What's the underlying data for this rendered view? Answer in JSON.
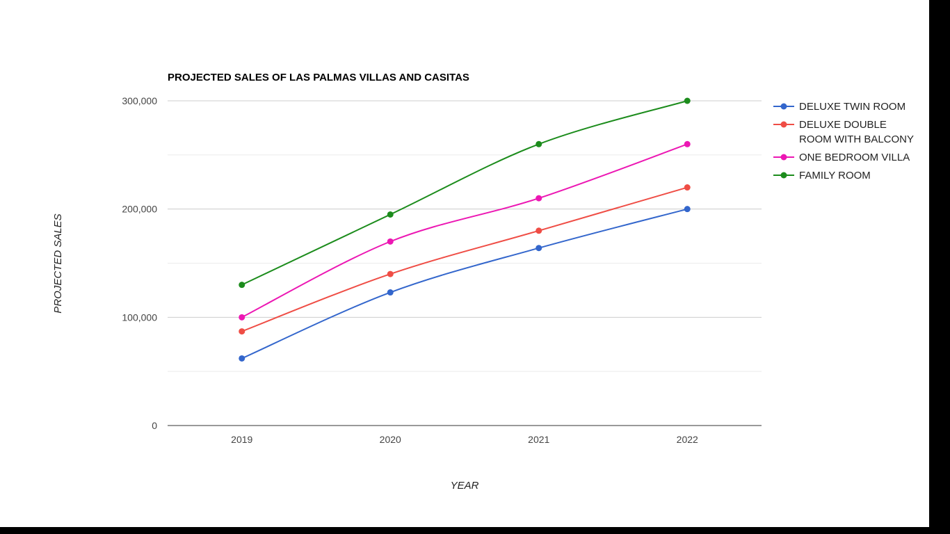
{
  "chart_data": {
    "type": "line",
    "title": "PROJECTED SALES OF LAS PALMAS VILLAS AND CASITAS",
    "xlabel": "YEAR",
    "ylabel": "PROJECTED SALES",
    "categories": [
      "2019",
      "2020",
      "2021",
      "2022"
    ],
    "ylim": [
      0,
      300000
    ],
    "y_ticks": [
      0,
      100000,
      200000,
      300000
    ],
    "y_tick_labels": [
      "0",
      "100,000",
      "200,000",
      "300,000"
    ],
    "grid": true,
    "smooth": true,
    "legend_position": "right",
    "series": [
      {
        "name": "DELUXE TWIN ROOM",
        "legend_lines": [
          "DELUXE TWIN ROOM"
        ],
        "color": "#3366cc",
        "values": [
          62000,
          123000,
          164000,
          200000
        ]
      },
      {
        "name": "DELUXE DOUBLE ROOM WITH BALCONY",
        "legend_lines": [
          "DELUXE DOUBLE",
          "ROOM WITH BALCONY"
        ],
        "color": "#ef4d45",
        "values": [
          87000,
          140000,
          180000,
          220000
        ]
      },
      {
        "name": "ONE BEDROOM VILLA",
        "legend_lines": [
          "ONE BEDROOM VILLA"
        ],
        "color": "#ec17b3",
        "values": [
          100000,
          170000,
          210000,
          260000
        ]
      },
      {
        "name": "FAMILY ROOM",
        "legend_lines": [
          "FAMILY ROOM"
        ],
        "color": "#1c8c1c",
        "values": [
          130000,
          195000,
          260000,
          300000
        ]
      }
    ]
  }
}
